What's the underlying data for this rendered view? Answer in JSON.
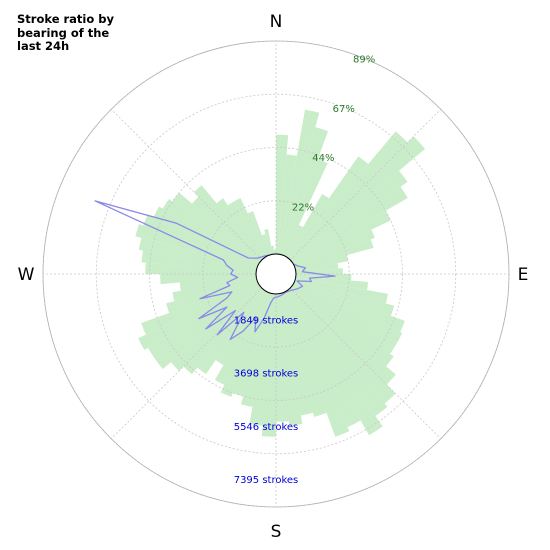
{
  "chart_data": {
    "type": "polar",
    "title": "Stroke ratio by\nbearing of the\nlast 24h",
    "cardinals": [
      "N",
      "E",
      "S",
      "W"
    ],
    "ratio_ticks": [
      "22%",
      "44%",
      "67%",
      "89%"
    ],
    "count_ticks": [
      "1849 strokes",
      "3698 strokes",
      "5546 strokes",
      "7395 strokes"
    ],
    "grid": true,
    "colors": {
      "ratio_bars": "#c9ecc9",
      "count_line": "#8a8ae8",
      "ratio_text": "#2a7a2a",
      "count_text": "#0000dd"
    },
    "series": [
      {
        "kind": "ratio_bars",
        "unit": "%",
        "bearing_start_deg": 0,
        "bin_width_deg": 5,
        "values": [
          56,
          47,
          69,
          62,
          48,
          16,
          34,
          58,
          78,
          82,
          66,
          62,
          50,
          40,
          38,
          25,
          20,
          22,
          26,
          34,
          44,
          48,
          55,
          56,
          56,
          58,
          64,
          62,
          58,
          58,
          60,
          56,
          60,
          58,
          62,
          60,
          67,
          62,
          54,
          50,
          49,
          40,
          38,
          34,
          34,
          32,
          36,
          40,
          37,
          36,
          34,
          36,
          32,
          45,
          52,
          54,
          56,
          59,
          57,
          54,
          52,
          50,
          42,
          45,
          34,
          30,
          30,
          22,
          10,
          12,
          0,
          0,
          0,
          0,
          0,
          0,
          0,
          0,
          0,
          0,
          0,
          0,
          0,
          0,
          0,
          0,
          30,
          16,
          0,
          0,
          0,
          0,
          0,
          0,
          8,
          35,
          40,
          58,
          64,
          70,
          72,
          78,
          70,
          72,
          60,
          58,
          55,
          58,
          60,
          62,
          50,
          48,
          52,
          48,
          40,
          48,
          52,
          55,
          60,
          60,
          62,
          58,
          44,
          40,
          36,
          38,
          28,
          30,
          30,
          20,
          18,
          12,
          10,
          8,
          8,
          8,
          8,
          8,
          8,
          8,
          6,
          4,
          4,
          2,
          2,
          2,
          2,
          2,
          2,
          2,
          2,
          2,
          2,
          2,
          2,
          2,
          2,
          2,
          2,
          2,
          2,
          2,
          2,
          2,
          2,
          2,
          2,
          2,
          2,
          2,
          2,
          2,
          2,
          2,
          2,
          2,
          2,
          2,
          2,
          2,
          2,
          2,
          2,
          2,
          2
        ]
      },
      {
        "kind": "count_line",
        "unit": "strokes",
        "points": [
          [
            0,
            0
          ],
          [
            10,
            0
          ],
          [
            20,
            0
          ],
          [
            30,
            0
          ],
          [
            40,
            0
          ],
          [
            50,
            0
          ],
          [
            60,
            0
          ],
          [
            70,
            150
          ],
          [
            78,
            430
          ],
          [
            85,
            280
          ],
          [
            92,
            1700
          ],
          [
            97,
            600
          ],
          [
            102,
            700
          ],
          [
            108,
            100
          ],
          [
            115,
            400
          ],
          [
            125,
            260
          ],
          [
            135,
            120
          ],
          [
            145,
            50
          ],
          [
            155,
            30
          ],
          [
            165,
            80
          ],
          [
            175,
            120
          ],
          [
            185,
            170
          ],
          [
            190,
            380
          ],
          [
            195,
            1100
          ],
          [
            200,
            1800
          ],
          [
            205,
            1200
          ],
          [
            210,
            2000
          ],
          [
            215,
            2600
          ],
          [
            220,
            1300
          ],
          [
            224,
            2800
          ],
          [
            228,
            1500
          ],
          [
            232,
            3000
          ],
          [
            236,
            1700
          ],
          [
            240,
            3000
          ],
          [
            244,
            1500
          ],
          [
            248,
            1200
          ],
          [
            252,
            2600
          ],
          [
            256,
            1200
          ],
          [
            260,
            1300
          ],
          [
            265,
            800
          ],
          [
            270,
            1100
          ],
          [
            275,
            1000
          ],
          [
            280,
            1300
          ],
          [
            285,
            1500
          ],
          [
            292,
            7600
          ],
          [
            297,
            4000
          ],
          [
            300,
            520
          ],
          [
            310,
            200
          ],
          [
            320,
            100
          ],
          [
            330,
            50
          ],
          [
            340,
            0
          ],
          [
            350,
            0
          ]
        ]
      }
    ]
  }
}
